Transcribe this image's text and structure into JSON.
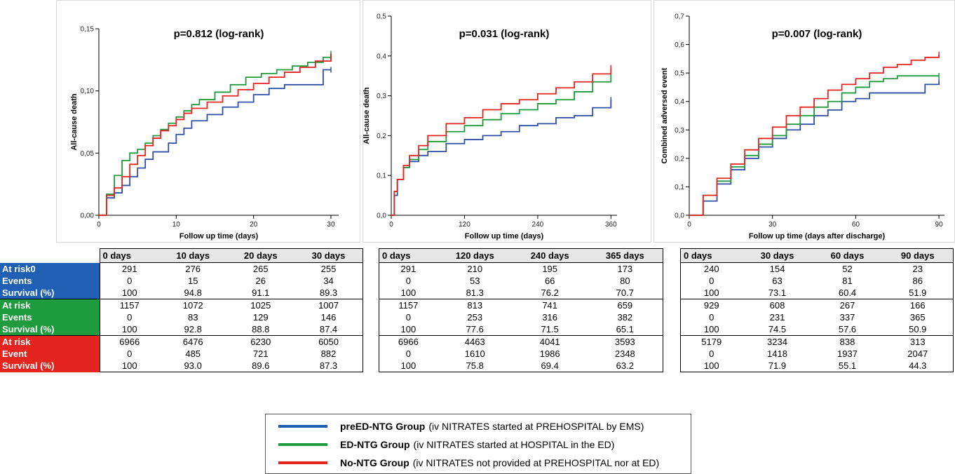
{
  "chart_data": [
    {
      "type": "line",
      "title": "p=0.812 (log-rank)",
      "xlabel": "Follow up time (days)",
      "ylabel": "All-cause death",
      "xlim": [
        0,
        31
      ],
      "ylim": [
        0,
        0.15
      ],
      "xticks": [
        0,
        10,
        20,
        30
      ],
      "xtick_labels": [
        "0",
        "10",
        "20",
        "30"
      ],
      "yticks": [
        0,
        0.05,
        0.1,
        0.15
      ],
      "ytick_labels": [
        "0,00",
        "0,05",
        "0,10",
        "0,15"
      ],
      "series": [
        {
          "color": "#2d4fa6",
          "x": [
            0,
            1,
            2,
            3,
            4,
            5,
            6,
            7,
            9,
            10,
            11,
            12,
            14,
            16,
            18,
            20,
            22,
            24,
            27,
            29,
            30
          ],
          "y": [
            0,
            0.014,
            0.018,
            0.024,
            0.031,
            0.038,
            0.045,
            0.051,
            0.058,
            0.065,
            0.07,
            0.076,
            0.081,
            0.087,
            0.091,
            0.097,
            0.102,
            0.105,
            0.105,
            0.117,
            0.117
          ]
        },
        {
          "color": "#1e9b3c",
          "x": [
            0,
            1,
            2,
            3,
            4,
            5,
            6,
            7,
            8,
            9,
            10,
            11,
            12,
            13,
            15,
            17,
            19,
            21,
            23,
            25,
            27,
            29,
            30
          ],
          "y": [
            0,
            0.017,
            0.032,
            0.044,
            0.05,
            0.053,
            0.058,
            0.064,
            0.069,
            0.074,
            0.079,
            0.084,
            0.089,
            0.093,
            0.099,
            0.105,
            0.111,
            0.114,
            0.117,
            0.12,
            0.123,
            0.127,
            0.13
          ]
        },
        {
          "color": "#e52420",
          "x": [
            0,
            1,
            2,
            3,
            4,
            5,
            6,
            7,
            8,
            9,
            10,
            11,
            12,
            14,
            16,
            18,
            20,
            22,
            24,
            26,
            28,
            30
          ],
          "y": [
            0,
            0.016,
            0.022,
            0.031,
            0.041,
            0.048,
            0.056,
            0.062,
            0.068,
            0.072,
            0.077,
            0.082,
            0.086,
            0.091,
            0.096,
            0.101,
            0.106,
            0.111,
            0.115,
            0.119,
            0.124,
            0.128
          ]
        }
      ]
    },
    {
      "type": "line",
      "title": "p=0.031 (log-rank)",
      "xlabel": "Follow up time (days)",
      "ylabel": "All-cause death",
      "xlim": [
        0,
        370
      ],
      "ylim": [
        0,
        0.5
      ],
      "xticks": [
        0,
        120,
        240,
        360
      ],
      "xtick_labels": [
        "0",
        "120",
        "240",
        "360"
      ],
      "yticks": [
        0,
        0.1,
        0.2,
        0.3,
        0.4,
        0.5
      ],
      "ytick_labels": [
        "0,0",
        "0,1",
        "0,2",
        "0,3",
        "0,4",
        "0,5"
      ],
      "series": [
        {
          "color": "#2d4fa6",
          "x": [
            0,
            5,
            10,
            20,
            30,
            45,
            60,
            90,
            120,
            150,
            180,
            210,
            240,
            270,
            300,
            330,
            360
          ],
          "y": [
            0,
            0.05,
            0.09,
            0.12,
            0.135,
            0.15,
            0.16,
            0.18,
            0.19,
            0.2,
            0.21,
            0.225,
            0.23,
            0.245,
            0.25,
            0.27,
            0.29
          ]
        },
        {
          "color": "#1e9b3c",
          "x": [
            0,
            5,
            10,
            20,
            30,
            45,
            60,
            90,
            120,
            150,
            180,
            210,
            240,
            270,
            300,
            330,
            360
          ],
          "y": [
            0,
            0.06,
            0.09,
            0.12,
            0.14,
            0.165,
            0.185,
            0.21,
            0.225,
            0.24,
            0.255,
            0.265,
            0.28,
            0.29,
            0.31,
            0.335,
            0.35
          ]
        },
        {
          "color": "#e52420",
          "x": [
            0,
            5,
            10,
            20,
            30,
            45,
            60,
            90,
            120,
            150,
            180,
            210,
            240,
            270,
            300,
            330,
            360
          ],
          "y": [
            0,
            0.06,
            0.09,
            0.125,
            0.15,
            0.175,
            0.2,
            0.23,
            0.245,
            0.265,
            0.28,
            0.29,
            0.305,
            0.32,
            0.335,
            0.355,
            0.37
          ]
        }
      ]
    },
    {
      "type": "line",
      "title": "p=0.007 (log-rank)",
      "xlabel": "Follow up time (days after discharge)",
      "ylabel": "Combined adversed event",
      "xlim": [
        0,
        92
      ],
      "ylim": [
        0,
        0.7
      ],
      "xticks": [
        0,
        30,
        60,
        90
      ],
      "xtick_labels": [
        "0",
        "30",
        "60",
        "90"
      ],
      "yticks": [
        0,
        0.1,
        0.2,
        0.3,
        0.4,
        0.5,
        0.6,
        0.7
      ],
      "ytick_labels": [
        "0,0",
        "0,1",
        "0,2",
        "0,3",
        "0,4",
        "0,5",
        "0,6",
        "0,7"
      ],
      "series": [
        {
          "color": "#2d4fa6",
          "x": [
            0,
            5,
            10,
            15,
            20,
            25,
            30,
            35,
            40,
            45,
            50,
            55,
            60,
            65,
            70,
            75,
            80,
            85,
            90
          ],
          "y": [
            0,
            0.05,
            0.11,
            0.16,
            0.2,
            0.24,
            0.27,
            0.3,
            0.32,
            0.35,
            0.37,
            0.4,
            0.41,
            0.43,
            0.43,
            0.43,
            0.43,
            0.46,
            0.47
          ]
        },
        {
          "color": "#1e9b3c",
          "x": [
            0,
            5,
            10,
            15,
            20,
            25,
            30,
            35,
            40,
            45,
            50,
            55,
            60,
            65,
            70,
            75,
            80,
            85,
            90
          ],
          "y": [
            0,
            0.07,
            0.12,
            0.17,
            0.21,
            0.25,
            0.28,
            0.32,
            0.35,
            0.38,
            0.4,
            0.43,
            0.45,
            0.47,
            0.48,
            0.49,
            0.49,
            0.49,
            0.49
          ]
        },
        {
          "color": "#e52420",
          "x": [
            0,
            5,
            10,
            15,
            20,
            25,
            30,
            35,
            40,
            45,
            50,
            55,
            60,
            65,
            70,
            75,
            80,
            85,
            90
          ],
          "y": [
            0,
            0.07,
            0.13,
            0.18,
            0.23,
            0.27,
            0.31,
            0.35,
            0.38,
            0.41,
            0.44,
            0.46,
            0.48,
            0.5,
            0.52,
            0.53,
            0.545,
            0.555,
            0.565
          ]
        }
      ]
    }
  ],
  "risk_tables": [
    {
      "headers": [
        "0 days",
        "10 days",
        "20 days",
        "30 days"
      ],
      "groups": [
        {
          "rows": [
            {
              "label": "At risk0",
              "values": [
                "291",
                "276",
                "265",
                "255"
              ]
            },
            {
              "label": "Events",
              "values": [
                "0",
                "15",
                "26",
                "34"
              ]
            },
            {
              "label": "Survival (%)",
              "values": [
                "100",
                "94.8",
                "91.1",
                "89.3"
              ]
            }
          ]
        },
        {
          "rows": [
            {
              "label": "At risk",
              "values": [
                "1157",
                "1072",
                "1025",
                "1007"
              ]
            },
            {
              "label": "Events",
              "values": [
                "0",
                "83",
                "129",
                "146"
              ]
            },
            {
              "label": "Survival (%)",
              "values": [
                "100",
                "92.8",
                "88.8",
                "87.4"
              ]
            }
          ]
        },
        {
          "rows": [
            {
              "label": "At risk",
              "values": [
                "6966",
                "6476",
                "6230",
                "6050"
              ]
            },
            {
              "label": "Event",
              "values": [
                "0",
                "485",
                "721",
                "882"
              ]
            },
            {
              "label": "Survival (%)",
              "values": [
                "100",
                "93.0",
                "89.6",
                "87.3"
              ]
            }
          ]
        }
      ]
    },
    {
      "headers": [
        "0  days",
        "120 days",
        "240 days",
        "365 days"
      ],
      "groups": [
        {
          "rows": [
            {
              "values": [
                "291",
                "210",
                "195",
                "173"
              ]
            },
            {
              "values": [
                "0",
                "53",
                "66",
                "80"
              ]
            },
            {
              "values": [
                "100",
                "81.3",
                "76.2",
                "70.7"
              ]
            }
          ]
        },
        {
          "rows": [
            {
              "values": [
                "1157",
                "813",
                "741",
                "659"
              ]
            },
            {
              "values": [
                "0",
                "253",
                "316",
                "382"
              ]
            },
            {
              "values": [
                "100",
                "77.6",
                "71.5",
                "65.1"
              ]
            }
          ]
        },
        {
          "rows": [
            {
              "values": [
                "6966",
                "4463",
                "4041",
                "3593"
              ]
            },
            {
              "values": [
                "0",
                "1610",
                "1986",
                "2348"
              ]
            },
            {
              "values": [
                "100",
                "75.8",
                "69.4",
                "63.2"
              ]
            }
          ]
        }
      ]
    },
    {
      "headers": [
        "0  days",
        "30 days",
        "60 days",
        "90 days"
      ],
      "groups": [
        {
          "rows": [
            {
              "values": [
                "240",
                "154",
                "52",
                "23"
              ]
            },
            {
              "values": [
                "0",
                "63",
                "81",
                "86"
              ]
            },
            {
              "values": [
                "100",
                "73.1",
                "60.4",
                "51.9"
              ]
            }
          ]
        },
        {
          "rows": [
            {
              "values": [
                "929",
                "608",
                "267",
                "166"
              ]
            },
            {
              "values": [
                "0",
                "231",
                "337",
                "365"
              ]
            },
            {
              "values": [
                "100",
                "74.5",
                "57.6",
                "50.9"
              ]
            }
          ]
        },
        {
          "rows": [
            {
              "values": [
                "5179",
                "3234",
                "838",
                "313"
              ]
            },
            {
              "values": [
                "0",
                "1418",
                "1937",
                "2047"
              ]
            },
            {
              "values": [
                "100",
                "71.9",
                "55.1",
                "44.3"
              ]
            }
          ]
        }
      ]
    }
  ],
  "legend": {
    "items": [
      {
        "color": "#1f5fb4",
        "name": "preED-NTG Group",
        "desc": "(iv NITRATES started at PREHOSPITAL by EMS)"
      },
      {
        "color": "#1e9b3c",
        "name": "ED-NTG Group",
        "desc": "(iv NITRATES started at HOSPITAL in the ED)"
      },
      {
        "color": "#e52420",
        "name": "No-NTG Group",
        "desc": "(iv NITRATES not provided at PREHOSPITAL nor at ED)"
      }
    ]
  }
}
